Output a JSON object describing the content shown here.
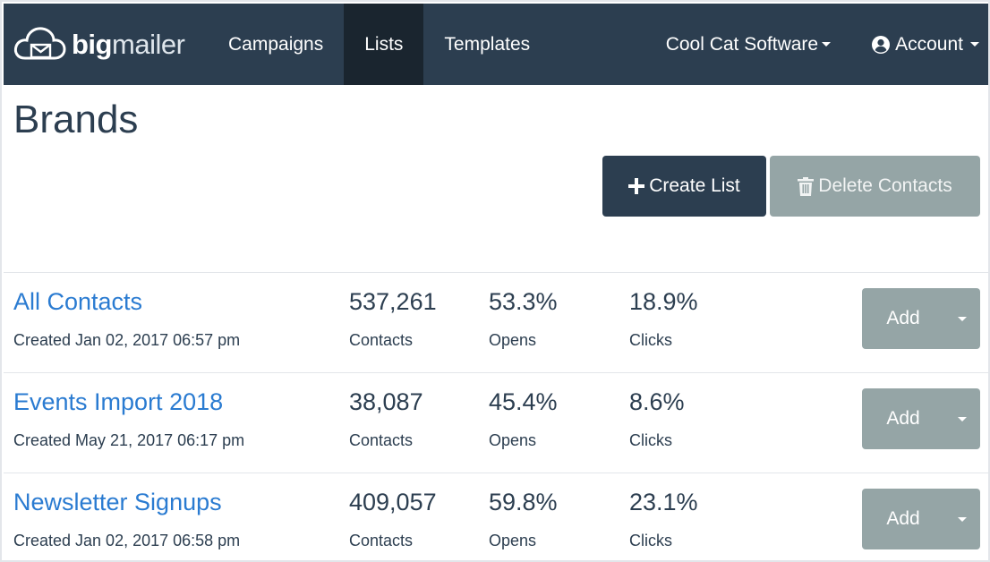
{
  "app": {
    "logo_bold": "big",
    "logo_light": "mailer"
  },
  "nav": {
    "items": [
      {
        "label": "Campaigns",
        "active": false
      },
      {
        "label": "Lists",
        "active": true
      },
      {
        "label": "Templates",
        "active": false
      }
    ],
    "org_menu": "Cool Cat Software",
    "account_menu": "Account"
  },
  "page": {
    "title": "Brands"
  },
  "toolbar": {
    "create_label": "Create List",
    "delete_label": "Delete Contacts"
  },
  "lists": [
    {
      "name": "All Contacts",
      "created": "Created Jan 02, 2017 06:57 pm",
      "contacts": "537,261",
      "contacts_label": "Contacts",
      "opens": "53.3%",
      "opens_label": "Opens",
      "clicks": "18.9%",
      "clicks_label": "Clicks",
      "add_label": "Add"
    },
    {
      "name": "Events Import 2018",
      "created": "Created May 21, 2017 06:17 pm",
      "contacts": "38,087",
      "contacts_label": "Contacts",
      "opens": "45.4%",
      "opens_label": "Opens",
      "clicks": "8.6%",
      "clicks_label": "Clicks",
      "add_label": "Add"
    },
    {
      "name": "Newsletter Signups",
      "created": "Created Jan 02, 2017 06:58 pm",
      "contacts": "409,057",
      "contacts_label": "Contacts",
      "opens": "59.8%",
      "opens_label": "Opens",
      "clicks": "23.1%",
      "clicks_label": "Clicks",
      "add_label": "Add"
    }
  ],
  "colors": {
    "nav_bg": "#2c3e50",
    "nav_active": "#1a252f",
    "link": "#2a7bd1",
    "muted_button": "#95a5a6"
  }
}
